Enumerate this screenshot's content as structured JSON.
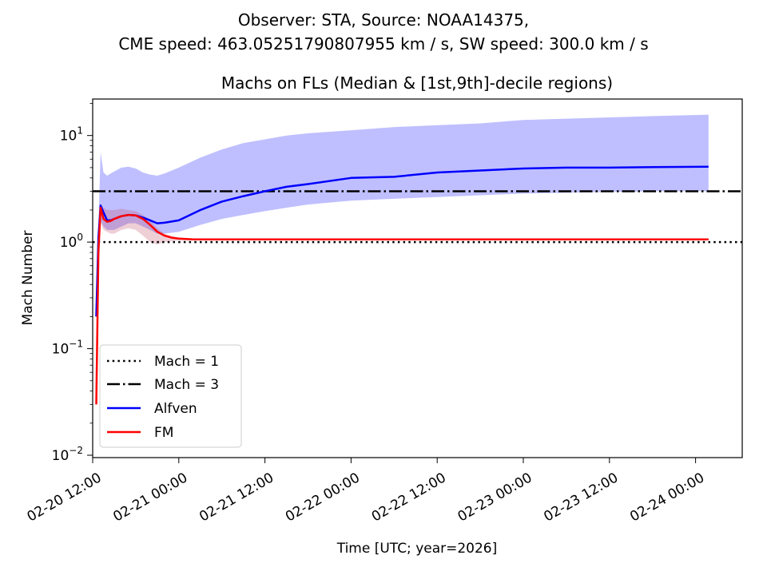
{
  "figure": {
    "suptitle_line1": "Observer: STA, Source: NOAA14375,",
    "suptitle_line2": "CME speed: 463.05251790807955 km / s, SW speed: 300.0 km / s"
  },
  "chart_data": {
    "type": "line",
    "title": "Machs on FLs (Median & [1st,9th]-decile regions)",
    "xlabel": "Time [UTC; year=2026]",
    "ylabel": "Mach Number",
    "yscale": "log",
    "xlim_hours": [
      0,
      90.5
    ],
    "ylim": [
      0.0095,
      22
    ],
    "x_tick_labels": [
      "02-20 12:00",
      "02-21 00:00",
      "02-21 12:00",
      "02-22 00:00",
      "02-22 12:00",
      "02-23 00:00",
      "02-23 12:00",
      "02-24 00:00"
    ],
    "x_tick_hours": [
      0,
      12,
      24,
      36,
      48,
      60,
      72,
      84
    ],
    "y_ticks": [
      {
        "value": 0.01,
        "label_base": "10",
        "label_exp": "−2"
      },
      {
        "value": 0.1,
        "label_base": "10",
        "label_exp": "−1"
      },
      {
        "value": 1,
        "label_base": "10",
        "label_exp": "0"
      },
      {
        "value": 10,
        "label_base": "10",
        "label_exp": "1"
      }
    ],
    "legend_position": "lower-left",
    "reference_lines": [
      {
        "name": "Mach = 1",
        "value": 1,
        "style": "dotted",
        "color": "#000000"
      },
      {
        "name": "Mach = 3",
        "value": 3,
        "style": "dashdot",
        "color": "#000000"
      }
    ],
    "series": [
      {
        "name": "Alfven",
        "color": "#0000ff",
        "band_color": "#0000ff",
        "hours": [
          0.5,
          0.8,
          1.1,
          1.5,
          2.0,
          2.5,
          3,
          4,
          5,
          6,
          7,
          8,
          9,
          10,
          12,
          15,
          18,
          21,
          24,
          27,
          30,
          36,
          42,
          48,
          54,
          60,
          66,
          72,
          78,
          85.8
        ],
        "median": [
          0.2,
          1.1,
          2.2,
          1.9,
          1.6,
          1.6,
          1.65,
          1.75,
          1.8,
          1.78,
          1.7,
          1.6,
          1.5,
          1.52,
          1.6,
          2.0,
          2.4,
          2.7,
          3.0,
          3.3,
          3.5,
          4.0,
          4.1,
          4.5,
          4.7,
          4.9,
          5.0,
          5.0,
          5.05,
          5.1
        ],
        "p10": [
          0.2,
          1.0,
          1.6,
          1.4,
          1.3,
          1.3,
          1.3,
          1.4,
          1.5,
          1.5,
          1.4,
          1.3,
          1.2,
          1.2,
          1.25,
          1.45,
          1.65,
          1.8,
          1.95,
          2.1,
          2.25,
          2.45,
          2.55,
          2.65,
          2.75,
          2.85,
          2.9,
          2.95,
          3.0,
          3.0
        ],
        "p90": [
          0.2,
          1.4,
          7.0,
          4.5,
          4.2,
          4.4,
          4.6,
          5.0,
          5.1,
          4.9,
          4.5,
          4.3,
          4.2,
          4.4,
          5.0,
          6.2,
          7.4,
          8.5,
          9.2,
          10.0,
          10.5,
          11.2,
          12.0,
          12.5,
          13.0,
          14.0,
          14.4,
          14.8,
          15.2,
          15.7
        ]
      },
      {
        "name": "FM",
        "color": "#ff0000",
        "band_color": "#c0405a",
        "hours": [
          0.5,
          0.8,
          1.1,
          1.5,
          2.0,
          2.5,
          3,
          4,
          5,
          6,
          7,
          8,
          9,
          10,
          11,
          12,
          14,
          18,
          24,
          36,
          48,
          60,
          72,
          85.8
        ],
        "median": [
          0.03,
          0.8,
          2.1,
          1.65,
          1.55,
          1.58,
          1.65,
          1.75,
          1.8,
          1.78,
          1.65,
          1.45,
          1.25,
          1.15,
          1.1,
          1.08,
          1.06,
          1.06,
          1.06,
          1.06,
          1.06,
          1.06,
          1.06,
          1.06
        ],
        "p10": [
          0.03,
          0.7,
          1.5,
          1.3,
          1.25,
          1.2,
          1.2,
          1.3,
          1.35,
          1.3,
          1.15,
          1.0,
          0.95,
          1.0,
          1.02,
          1.03,
          1.04,
          1.05,
          1.05,
          1.05,
          1.05,
          1.05,
          1.05,
          1.05
        ],
        "p90": [
          0.03,
          0.9,
          2.3,
          2.1,
          2.0,
          2.0,
          2.0,
          2.05,
          2.0,
          1.95,
          1.8,
          1.6,
          1.35,
          1.2,
          1.14,
          1.1,
          1.08,
          1.07,
          1.07,
          1.07,
          1.07,
          1.07,
          1.07,
          1.07
        ]
      }
    ]
  }
}
